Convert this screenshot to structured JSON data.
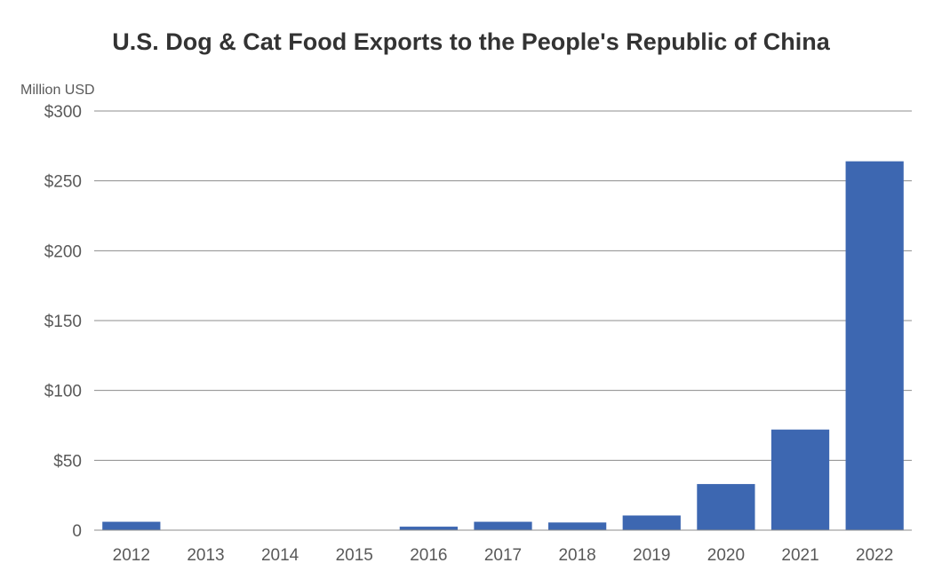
{
  "chart_data": {
    "type": "bar",
    "title": "U.S. Dog & Cat Food Exports to the People's Republic of China",
    "unit_label": "Million USD",
    "xlabel": "",
    "ylabel": "",
    "categories": [
      "2012",
      "2013",
      "2014",
      "2015",
      "2016",
      "2017",
      "2018",
      "2019",
      "2020",
      "2021",
      "2022"
    ],
    "values": [
      6,
      0,
      0,
      0,
      2.5,
      6,
      5.5,
      10.5,
      33,
      72,
      264
    ],
    "ylim": [
      0,
      300
    ],
    "yticks": [
      0,
      50,
      100,
      150,
      200,
      250,
      300
    ],
    "ytick_labels": [
      "0",
      "$50",
      "$100",
      "$150",
      "$200",
      "$250",
      "$300"
    ],
    "grid": true,
    "legend": "none",
    "bar_color": "#3d67b1",
    "grid_color": "#8c8c8c",
    "title_color": "#333333",
    "label_color": "#595959"
  }
}
